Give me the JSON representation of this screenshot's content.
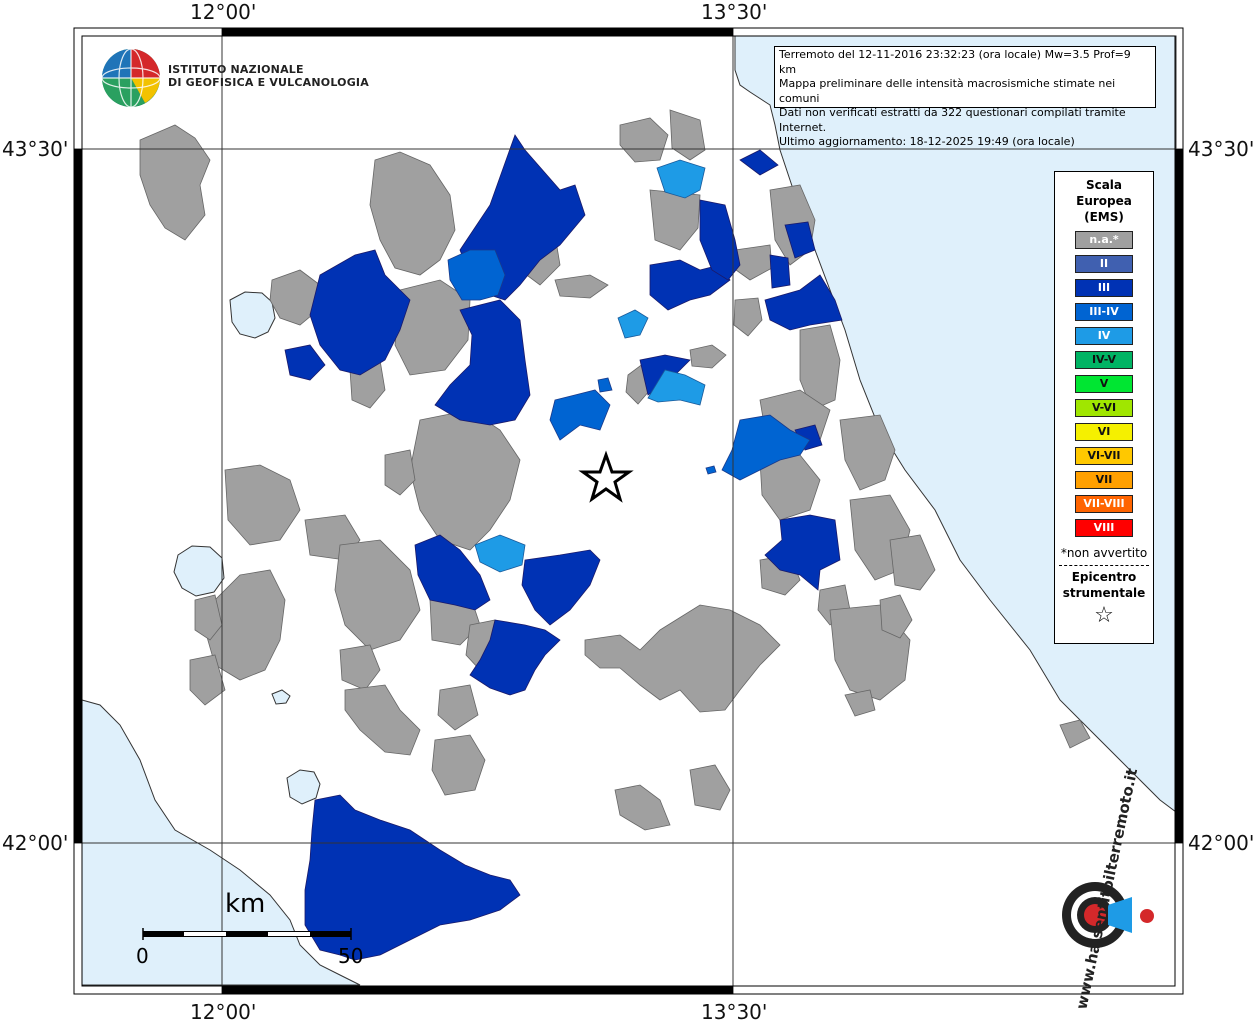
{
  "coords": {
    "top_left": "12°00'",
    "top_right": "13°30'",
    "bottom_left": "12°00'",
    "bottom_right": "13°30'",
    "left_upper": "43°30'",
    "left_lower": "42°00'",
    "right_upper": "43°30'",
    "right_lower": "42°00'"
  },
  "info": {
    "line1": "Terremoto del 12-11-2016 23:32:23 (ora locale) Mw=3.5 Prof=9 km",
    "line2": "Mappa preliminare delle intensità macrosismiche stimate nei comuni",
    "line3": "Dati non verificati estratti da 322 questionari compilati tramite Internet.",
    "line4": "Ultimo aggiornamento: 18-12-2025 19:49 (ora locale)"
  },
  "logo": {
    "ingv_line1": "ISTITUTO NAZIONALE",
    "ingv_line2": "DI GEOFISICA E VULCANOLOGIA",
    "hsit_text": "www.haisentitoilterremoto.it"
  },
  "legend": {
    "title1": "Scala",
    "title2": "Europea",
    "title3": "(EMS)",
    "items": [
      {
        "label": "n.a.*",
        "color": "#a0a0a0"
      },
      {
        "label": "II",
        "color": "#4060b0"
      },
      {
        "label": "III",
        "color": "#0032b4"
      },
      {
        "label": "III-IV",
        "color": "#0064d2"
      },
      {
        "label": "IV",
        "color": "#1e9be6"
      },
      {
        "label": "IV-V",
        "color": "#00b464"
      },
      {
        "label": "V",
        "color": "#00e632"
      },
      {
        "label": "V-VI",
        "color": "#a0e600"
      },
      {
        "label": "VI",
        "color": "#f5f000"
      },
      {
        "label": "VI-VII",
        "color": "#ffc800"
      },
      {
        "label": "VII",
        "color": "#ffa000"
      },
      {
        "label": "VII-VIII",
        "color": "#ff6400"
      },
      {
        "label": "VIII",
        "color": "#ff0000"
      }
    ],
    "note": "*non avvertito",
    "epi1": "Epicentro",
    "epi2": "strumentale",
    "epi_symbol": "☆"
  },
  "scale": {
    "unit": "km",
    "start": "0",
    "end": "50"
  },
  "colors": {
    "sea": "#dff0fb",
    "na": "#a0a0a0",
    "III": "#0032b4",
    "III_IV": "#0064d2",
    "IV": "#1e9be6"
  }
}
